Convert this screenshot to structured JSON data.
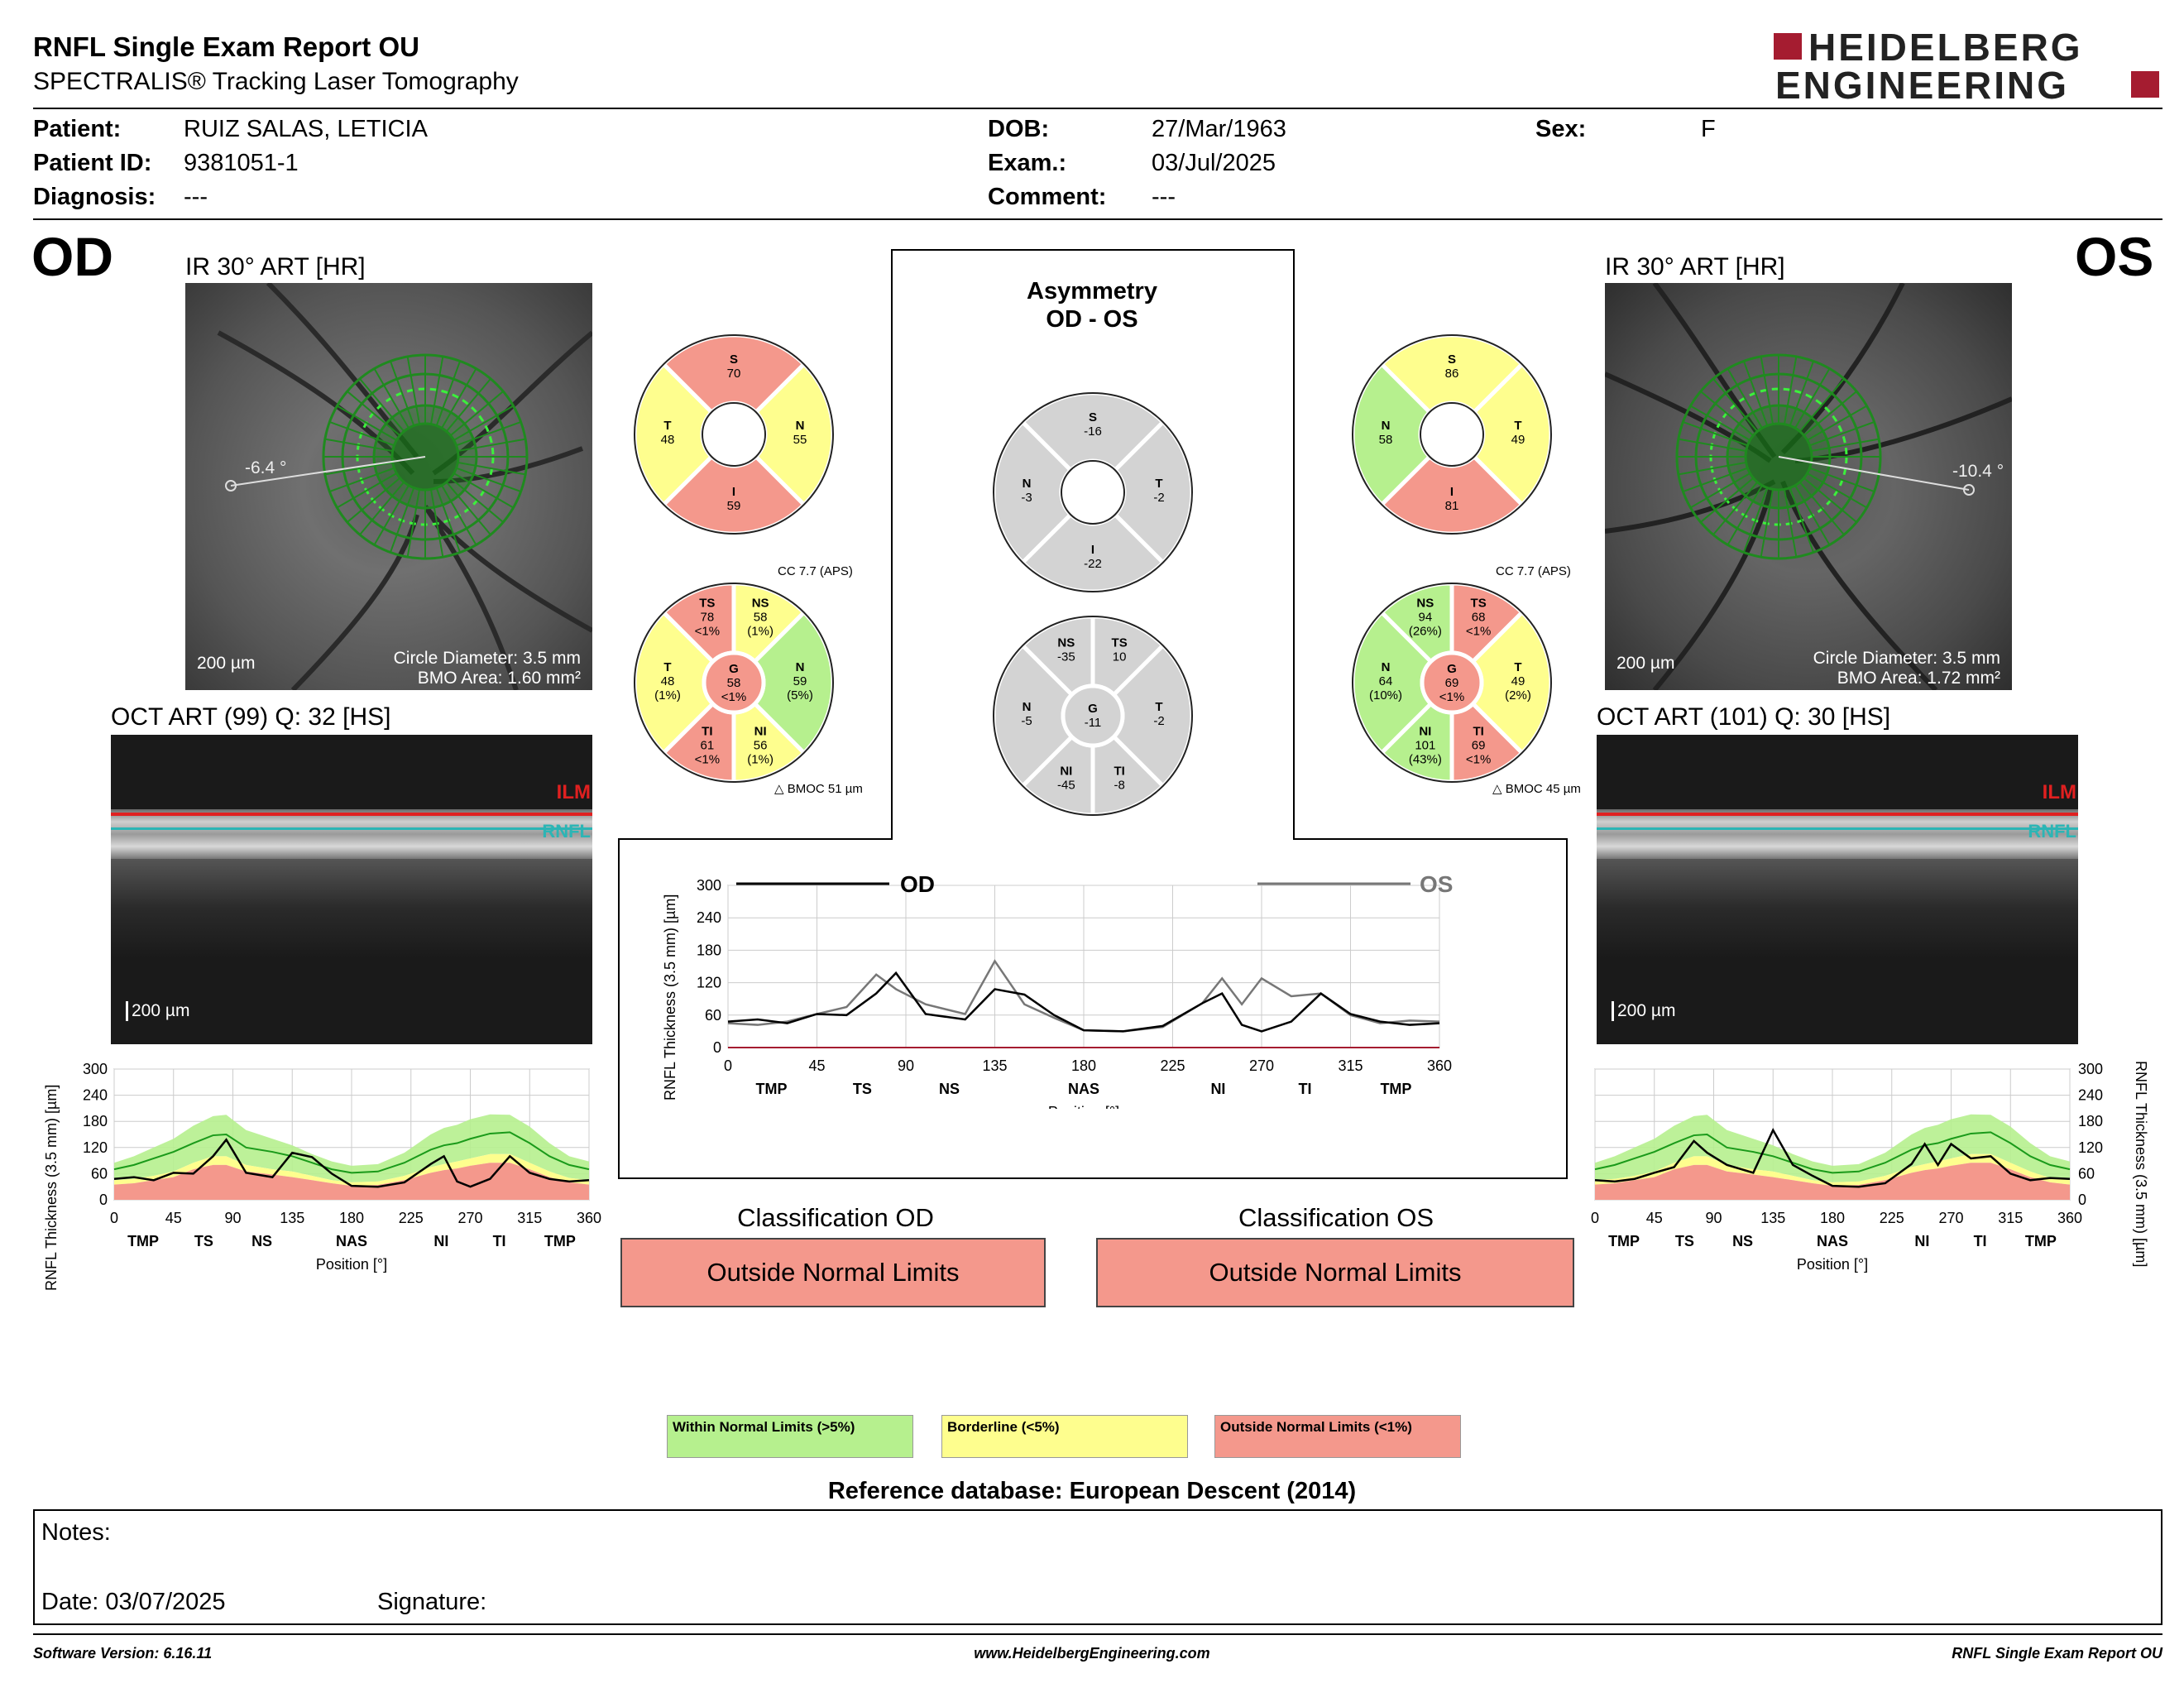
{
  "header": {
    "title": "RNFL Single Exam Report OU",
    "subtitle": "SPECTRALIS® Tracking Laser Tomography",
    "logo_line1": "HEIDELBERG",
    "logo_line2": "ENGINEERING"
  },
  "patient": {
    "patient_label": "Patient:",
    "patient_value": "RUIZ SALAS, LETICIA",
    "id_label": "Patient ID:",
    "id_value": "9381051-1",
    "diagnosis_label": "Diagnosis:",
    "diagnosis_value": "---",
    "dob_label": "DOB:",
    "dob_value": "27/Mar/1963",
    "exam_label": "Exam.:",
    "exam_value": "03/Jul/2025",
    "comment_label": "Comment:",
    "comment_value": "---",
    "sex_label": "Sex:",
    "sex_value": "F"
  },
  "od": {
    "eye": "OD",
    "ir_title": "IR 30° ART [HR]",
    "angle": "-6.4 °",
    "scale": "200 µm",
    "circle_diameter": "Circle Diameter: 3.5 mm",
    "bmo_area": "BMO Area: 1.60 mm²",
    "oct_title": "OCT ART (99) Q: 32 [HS]",
    "oct_scale": "200 µm",
    "cc": "CC 7.7 (APS)",
    "bmoc": "BMOC 51 µm",
    "sectors4": {
      "S": "70",
      "T": "48",
      "N": "55",
      "I": "59"
    },
    "sectors6": {
      "TS": [
        "78",
        "<1%"
      ],
      "NS": [
        "58",
        "(1%)"
      ],
      "T": [
        "48",
        "(1%)"
      ],
      "N": [
        "59",
        "(5%)"
      ],
      "G": [
        "58",
        "<1%"
      ],
      "TI": [
        "61",
        "<1%"
      ],
      "NI": [
        "56",
        "(1%)"
      ]
    },
    "classification_title": "Classification OD",
    "classification": "Outside Normal Limits"
  },
  "os": {
    "eye": "OS",
    "ir_title": "IR 30° ART [HR]",
    "angle": "-10.4 °",
    "scale": "200 µm",
    "circle_diameter": "Circle Diameter: 3.5 mm",
    "bmo_area": "BMO Area: 1.72 mm²",
    "oct_title": "OCT ART (101) Q: 30 [HS]",
    "oct_scale": "200 µm",
    "cc": "CC 7.7 (APS)",
    "bmoc": "BMOC 45 µm",
    "sectors4": {
      "S": "86",
      "N": "58",
      "T": "49",
      "I": "81"
    },
    "sectors6": {
      "NS": [
        "94",
        "(26%)"
      ],
      "TS": [
        "68",
        "<1%"
      ],
      "N": [
        "64",
        "(10%)"
      ],
      "T": [
        "49",
        "(2%)"
      ],
      "G": [
        "69",
        "<1%"
      ],
      "NI": [
        "101",
        "(43%)"
      ],
      "TI": [
        "69",
        "<1%"
      ]
    },
    "classification_title": "Classification OS",
    "classification": "Outside Normal Limits"
  },
  "asymmetry": {
    "title1": "Asymmetry",
    "title2": "OD - OS",
    "sectors4": {
      "S": "-16",
      "N": "-3",
      "T": "-2",
      "I": "-22"
    },
    "sectors6": {
      "NS": "-35",
      "TS": "10",
      "N": "-5",
      "G": "-11",
      "T": "-2",
      "NI": "-45",
      "TI": "-8"
    }
  },
  "layers": {
    "ilm": "ILM",
    "rnfl": "RNFL"
  },
  "chart_common": {
    "ylabel": "RNFL Thickness (3.5 mm) [µm]",
    "xlabel": "Position [°]",
    "yticks": [
      "0",
      "60",
      "120",
      "180",
      "240",
      "300"
    ],
    "xticks": [
      "0",
      "45",
      "90",
      "135",
      "180",
      "225",
      "270",
      "315",
      "360"
    ],
    "sector_labels_od": [
      "TMP",
      "TS",
      "NS",
      "NAS",
      "NI",
      "TI",
      "TMP"
    ],
    "sector_labels_os": [
      "TMP",
      "TS",
      "NS",
      "NAS",
      "NI",
      "TI",
      "TMP"
    ],
    "legend_od": "OD",
    "legend_os": "OS"
  },
  "chart_data": [
    {
      "type": "line",
      "name": "OD profile",
      "x": [
        0,
        15,
        30,
        45,
        60,
        75,
        85,
        100,
        120,
        135,
        150,
        165,
        180,
        200,
        220,
        240,
        250,
        260,
        270,
        285,
        300,
        315,
        330,
        345,
        360
      ],
      "series": [
        {
          "name": "OD",
          "values": [
            48,
            52,
            45,
            62,
            60,
            100,
            138,
            62,
            52,
            108,
            98,
            60,
            32,
            30,
            40,
            82,
            100,
            42,
            30,
            48,
            100,
            62,
            48,
            42,
            45
          ]
        },
        {
          "name": "normal_mean",
          "values": [
            70,
            80,
            95,
            110,
            130,
            148,
            150,
            120,
            110,
            100,
            85,
            70,
            62,
            65,
            85,
            115,
            125,
            130,
            140,
            152,
            155,
            130,
            100,
            80,
            70
          ]
        },
        {
          "name": "normal_upper",
          "values": [
            85,
            100,
            120,
            140,
            170,
            192,
            195,
            160,
            140,
            125,
            105,
            88,
            78,
            82,
            108,
            150,
            165,
            172,
            185,
            196,
            195,
            168,
            130,
            100,
            88
          ]
        },
        {
          "name": "border_low",
          "values": [
            45,
            48,
            55,
            65,
            85,
            100,
            100,
            80,
            70,
            65,
            55,
            45,
            40,
            42,
            55,
            75,
            82,
            88,
            95,
            105,
            105,
            85,
            65,
            50,
            45
          ]
        },
        {
          "name": "outside_low",
          "values": [
            35,
            38,
            45,
            52,
            70,
            80,
            80,
            65,
            58,
            52,
            45,
            38,
            32,
            34,
            45,
            62,
            68,
            72,
            78,
            85,
            85,
            70,
            52,
            40,
            35
          ]
        }
      ],
      "ylim": [
        0,
        300
      ],
      "xlim": [
        0,
        360
      ]
    },
    {
      "type": "line",
      "name": "OS profile",
      "x": [
        0,
        15,
        30,
        45,
        60,
        75,
        85,
        100,
        120,
        135,
        150,
        165,
        180,
        200,
        220,
        240,
        250,
        260,
        270,
        285,
        300,
        315,
        330,
        345,
        360
      ],
      "series": [
        {
          "name": "OS",
          "values": [
            45,
            42,
            48,
            62,
            75,
            135,
            108,
            80,
            62,
            160,
            80,
            55,
            32,
            30,
            38,
            82,
            128,
            80,
            128,
            95,
            100,
            60,
            45,
            50,
            48
          ]
        },
        {
          "name": "normal_mean",
          "values": [
            70,
            80,
            95,
            110,
            130,
            148,
            150,
            120,
            110,
            100,
            85,
            70,
            62,
            65,
            85,
            115,
            125,
            130,
            140,
            152,
            155,
            130,
            100,
            80,
            70
          ]
        },
        {
          "name": "normal_upper",
          "values": [
            85,
            100,
            120,
            140,
            170,
            192,
            195,
            160,
            140,
            125,
            105,
            88,
            78,
            82,
            108,
            150,
            165,
            172,
            185,
            196,
            195,
            168,
            130,
            100,
            88
          ]
        },
        {
          "name": "border_low",
          "values": [
            45,
            48,
            55,
            65,
            85,
            100,
            100,
            80,
            70,
            65,
            55,
            45,
            40,
            42,
            55,
            75,
            82,
            88,
            95,
            105,
            105,
            85,
            65,
            50,
            45
          ]
        },
        {
          "name": "outside_low",
          "values": [
            35,
            38,
            45,
            52,
            70,
            80,
            80,
            65,
            58,
            52,
            45,
            38,
            32,
            34,
            45,
            62,
            68,
            72,
            78,
            85,
            85,
            70,
            52,
            40,
            35
          ]
        }
      ],
      "ylim": [
        0,
        300
      ],
      "xlim": [
        0,
        360
      ]
    },
    {
      "type": "line",
      "name": "OD vs OS comparison",
      "x": [
        0,
        15,
        30,
        45,
        60,
        75,
        85,
        100,
        120,
        135,
        150,
        165,
        180,
        200,
        220,
        240,
        250,
        260,
        270,
        285,
        300,
        315,
        330,
        345,
        360
      ],
      "series": [
        {
          "name": "OD",
          "values": [
            48,
            52,
            45,
            62,
            60,
            100,
            138,
            62,
            52,
            108,
            98,
            60,
            32,
            30,
            40,
            82,
            100,
            42,
            30,
            48,
            100,
            62,
            48,
            42,
            45
          ]
        },
        {
          "name": "OS",
          "values": [
            45,
            42,
            48,
            62,
            75,
            135,
            108,
            80,
            62,
            160,
            80,
            55,
            32,
            30,
            38,
            82,
            128,
            80,
            128,
            95,
            100,
            60,
            45,
            50,
            48
          ]
        }
      ],
      "ylim": [
        0,
        300
      ],
      "xlim": [
        0,
        360
      ]
    }
  ],
  "legend": {
    "within": "Within Normal Limits (>5%)",
    "borderline": "Borderline (<5%)",
    "outside": "Outside Normal Limits (<1%)",
    "reference": "Reference database: European Descent (2014)"
  },
  "notes": {
    "notes_label": "Notes:",
    "date_label": "Date: 03/07/2025",
    "signature_label": "Signature:"
  },
  "footer": {
    "software": "Software Version: 6.16.11",
    "website": "www.HeidelbergEngineering.com",
    "report": "RNFL Single Exam Report OU"
  },
  "colors": {
    "green": "#b6f08e",
    "yellow": "#fefe8e",
    "red": "#f4988c",
    "gray": "#d3d3d3",
    "brand": "#a51c30"
  }
}
